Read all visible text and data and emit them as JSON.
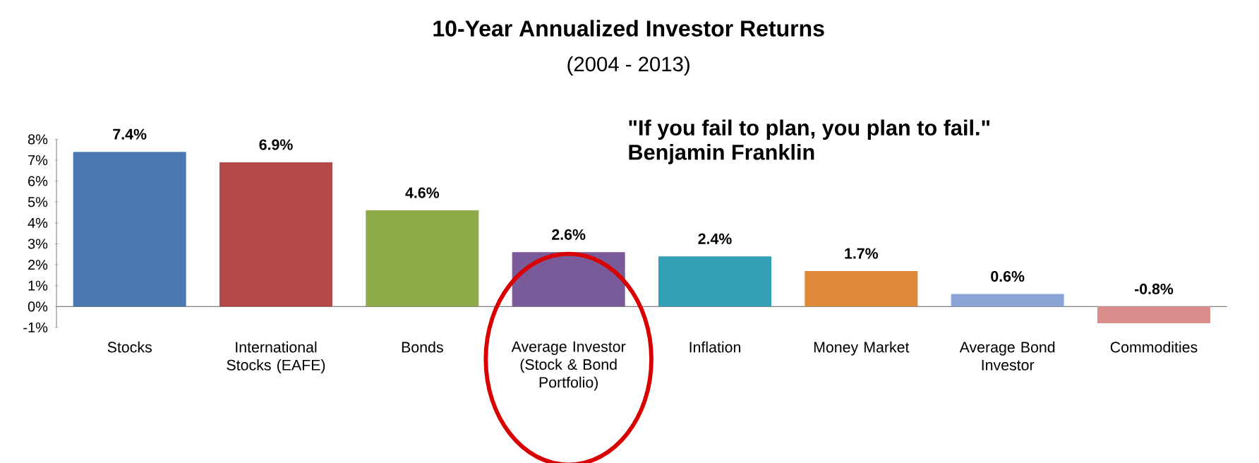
{
  "chart_data": {
    "type": "bar",
    "title": "10-Year Annualized  Investor Returns",
    "subtitle": "(2004 - 2013)",
    "categories": [
      "Stocks",
      "International Stocks (EAFE)",
      "Bonds",
      "Average Investor (Stock & Bond Portfolio)",
      "Inflation",
      "Money Market",
      "Average Bond Investor",
      "Commodities"
    ],
    "values": [
      7.4,
      6.9,
      4.6,
      2.6,
      2.4,
      1.7,
      0.6,
      -0.8
    ],
    "value_labels": [
      "7.4%",
      "6.9%",
      "4.6%",
      "2.6%",
      "2.4%",
      "1.7%",
      "0.6%",
      "-0.8%"
    ],
    "colors": [
      "#4a7ab0",
      "#b44a47",
      "#8eab4a",
      "#7a5b9a",
      "#33a0b6",
      "#e0883a",
      "#8aa5d5",
      "#d98e8c"
    ],
    "ylim": [
      -1,
      8
    ],
    "yticks": [
      {
        "value": -1,
        "label": "-1%"
      },
      {
        "value": 0,
        "label": "0%"
      },
      {
        "value": 1,
        "label": "1%"
      },
      {
        "value": 2,
        "label": "2%"
      },
      {
        "value": 3,
        "label": "3%"
      },
      {
        "value": 4,
        "label": "4%"
      },
      {
        "value": 5,
        "label": "5%"
      },
      {
        "value": 6,
        "label": "6%"
      },
      {
        "value": 7,
        "label": "7%"
      },
      {
        "value": 8,
        "label": "8%"
      }
    ],
    "annotations": [
      "\"If you fail to plan, you plan to fail.\"",
      "Benjamin Franklin"
    ]
  }
}
